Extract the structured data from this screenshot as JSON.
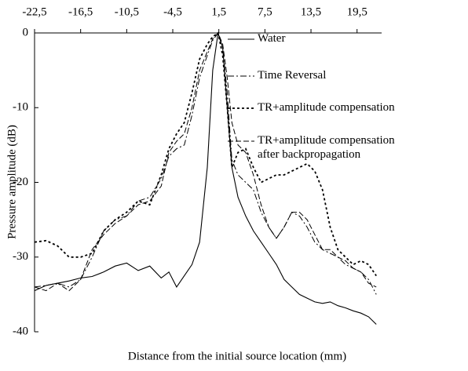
{
  "chart_data": {
    "type": "line",
    "xlabel": "Distance from the initial source location (mm)",
    "ylabel": "Pressure amplitude (dB)",
    "x": [
      -22.5,
      -21,
      -19.5,
      -18,
      -16.5,
      -15,
      -13.5,
      -12,
      -10.5,
      -9,
      -7.5,
      -6,
      -5,
      -4,
      -3,
      -2,
      -1,
      0,
      0.7,
      1.4,
      2,
      2.6,
      3.2,
      4,
      5,
      6,
      7,
      8,
      9,
      10,
      11,
      12,
      13,
      14,
      15,
      16,
      17,
      18,
      19,
      20,
      21,
      22
    ],
    "series": [
      {
        "name": "Water",
        "color": "#000000",
        "dash": "none",
        "width": 1.1,
        "values": [
          -34.5,
          -33.8,
          -33.5,
          -33.2,
          -32.8,
          -32.6,
          -32,
          -31.2,
          -30.8,
          -31.8,
          -31.2,
          -32.8,
          -32,
          -34,
          -32.5,
          -31,
          -28,
          -18,
          -5,
          0,
          -2,
          -10,
          -18,
          -22,
          -24.5,
          -26.5,
          -28,
          -29.5,
          -31,
          -33,
          -34,
          -35,
          -35.5,
          -36,
          -36.2,
          -36,
          -36.5,
          -36.8,
          -37.2,
          -37.5,
          -38,
          -39
        ]
      },
      {
        "name": "Time Reversal",
        "color": "#000000",
        "dash": "8 3 2 3",
        "width": 1,
        "values": [
          -34,
          -33.8,
          -33.5,
          -34,
          -33,
          -30,
          -26.5,
          -25,
          -24.5,
          -22.5,
          -22,
          -19.5,
          -16.5,
          -15.5,
          -15,
          -11,
          -6,
          -3,
          -1,
          0,
          -2,
          -8,
          -17,
          -19,
          -20,
          -21,
          -24,
          -26,
          -27.5,
          -26,
          -24,
          -24.5,
          -26,
          -28,
          -29,
          -29.5,
          -30,
          -31,
          -31.5,
          -32,
          -33,
          -35
        ]
      },
      {
        "name": "TR+amplitude compensation",
        "color": "#000000",
        "dash": "3 3",
        "width": 1.8,
        "values": [
          -28,
          -27.8,
          -28.5,
          -30,
          -30,
          -29.5,
          -26.5,
          -25,
          -24,
          -22.5,
          -23,
          -19,
          -15.5,
          -13.5,
          -12,
          -8,
          -3.5,
          -1.5,
          -0.5,
          0,
          -3,
          -10,
          -18,
          -16,
          -15.5,
          -18,
          -20,
          -19.5,
          -19,
          -19,
          -18.5,
          -18,
          -17.5,
          -18.5,
          -21,
          -26,
          -29,
          -30,
          -31,
          -30.5,
          -31,
          -32.5
        ]
      },
      {
        "name": "TR+amplitude compensation\nafter backpropagation",
        "color": "#000000",
        "dash": "7 3",
        "width": 1,
        "values": [
          -34,
          -34.5,
          -33.5,
          -34.5,
          -33,
          -29,
          -27,
          -25.5,
          -24.5,
          -23,
          -22.5,
          -20.5,
          -16,
          -14.5,
          -13.5,
          -10,
          -5,
          -2.5,
          -0.8,
          0,
          -1.5,
          -6,
          -12,
          -15,
          -16,
          -19,
          -23,
          -26,
          -27.5,
          -26,
          -24,
          -24,
          -25,
          -27,
          -29,
          -29,
          -30,
          -30.5,
          -31.5,
          -32,
          -33.5,
          -34
        ]
      }
    ],
    "xlim": [
      -22.5,
      22.7
    ],
    "ylim": [
      -40,
      0
    ],
    "xticks": [
      {
        "value": -22.5,
        "label": "-22,5"
      },
      {
        "value": -16.5,
        "label": "-16,5"
      },
      {
        "value": -10.5,
        "label": "-10,5"
      },
      {
        "value": -4.5,
        "label": "-4,5"
      },
      {
        "value": 1.5,
        "label": "1,5"
      },
      {
        "value": 7.5,
        "label": "7,5"
      },
      {
        "value": 13.5,
        "label": "13,5"
      },
      {
        "value": 19.5,
        "label": "19,5"
      }
    ],
    "yticks": [
      0,
      -10,
      -20,
      -30,
      -40
    ]
  }
}
